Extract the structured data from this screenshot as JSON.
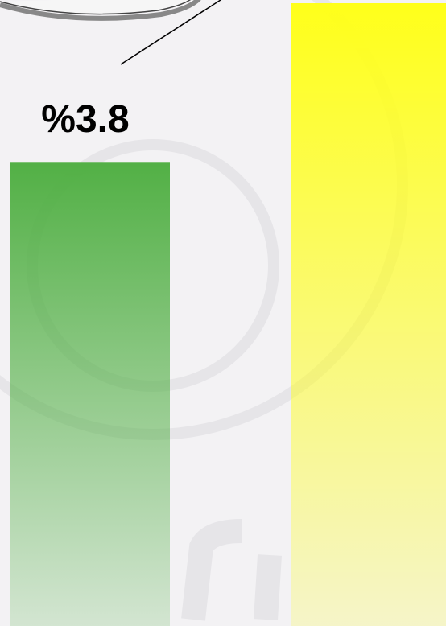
{
  "chart_data": {
    "type": "bar",
    "categories": [
      null,
      null
    ],
    "values": [
      3.8,
      5.1
    ],
    "value_labels": [
      "%3.8",
      null
    ],
    "colors": [
      "#52b045",
      "#ffff1a"
    ]
  }
}
